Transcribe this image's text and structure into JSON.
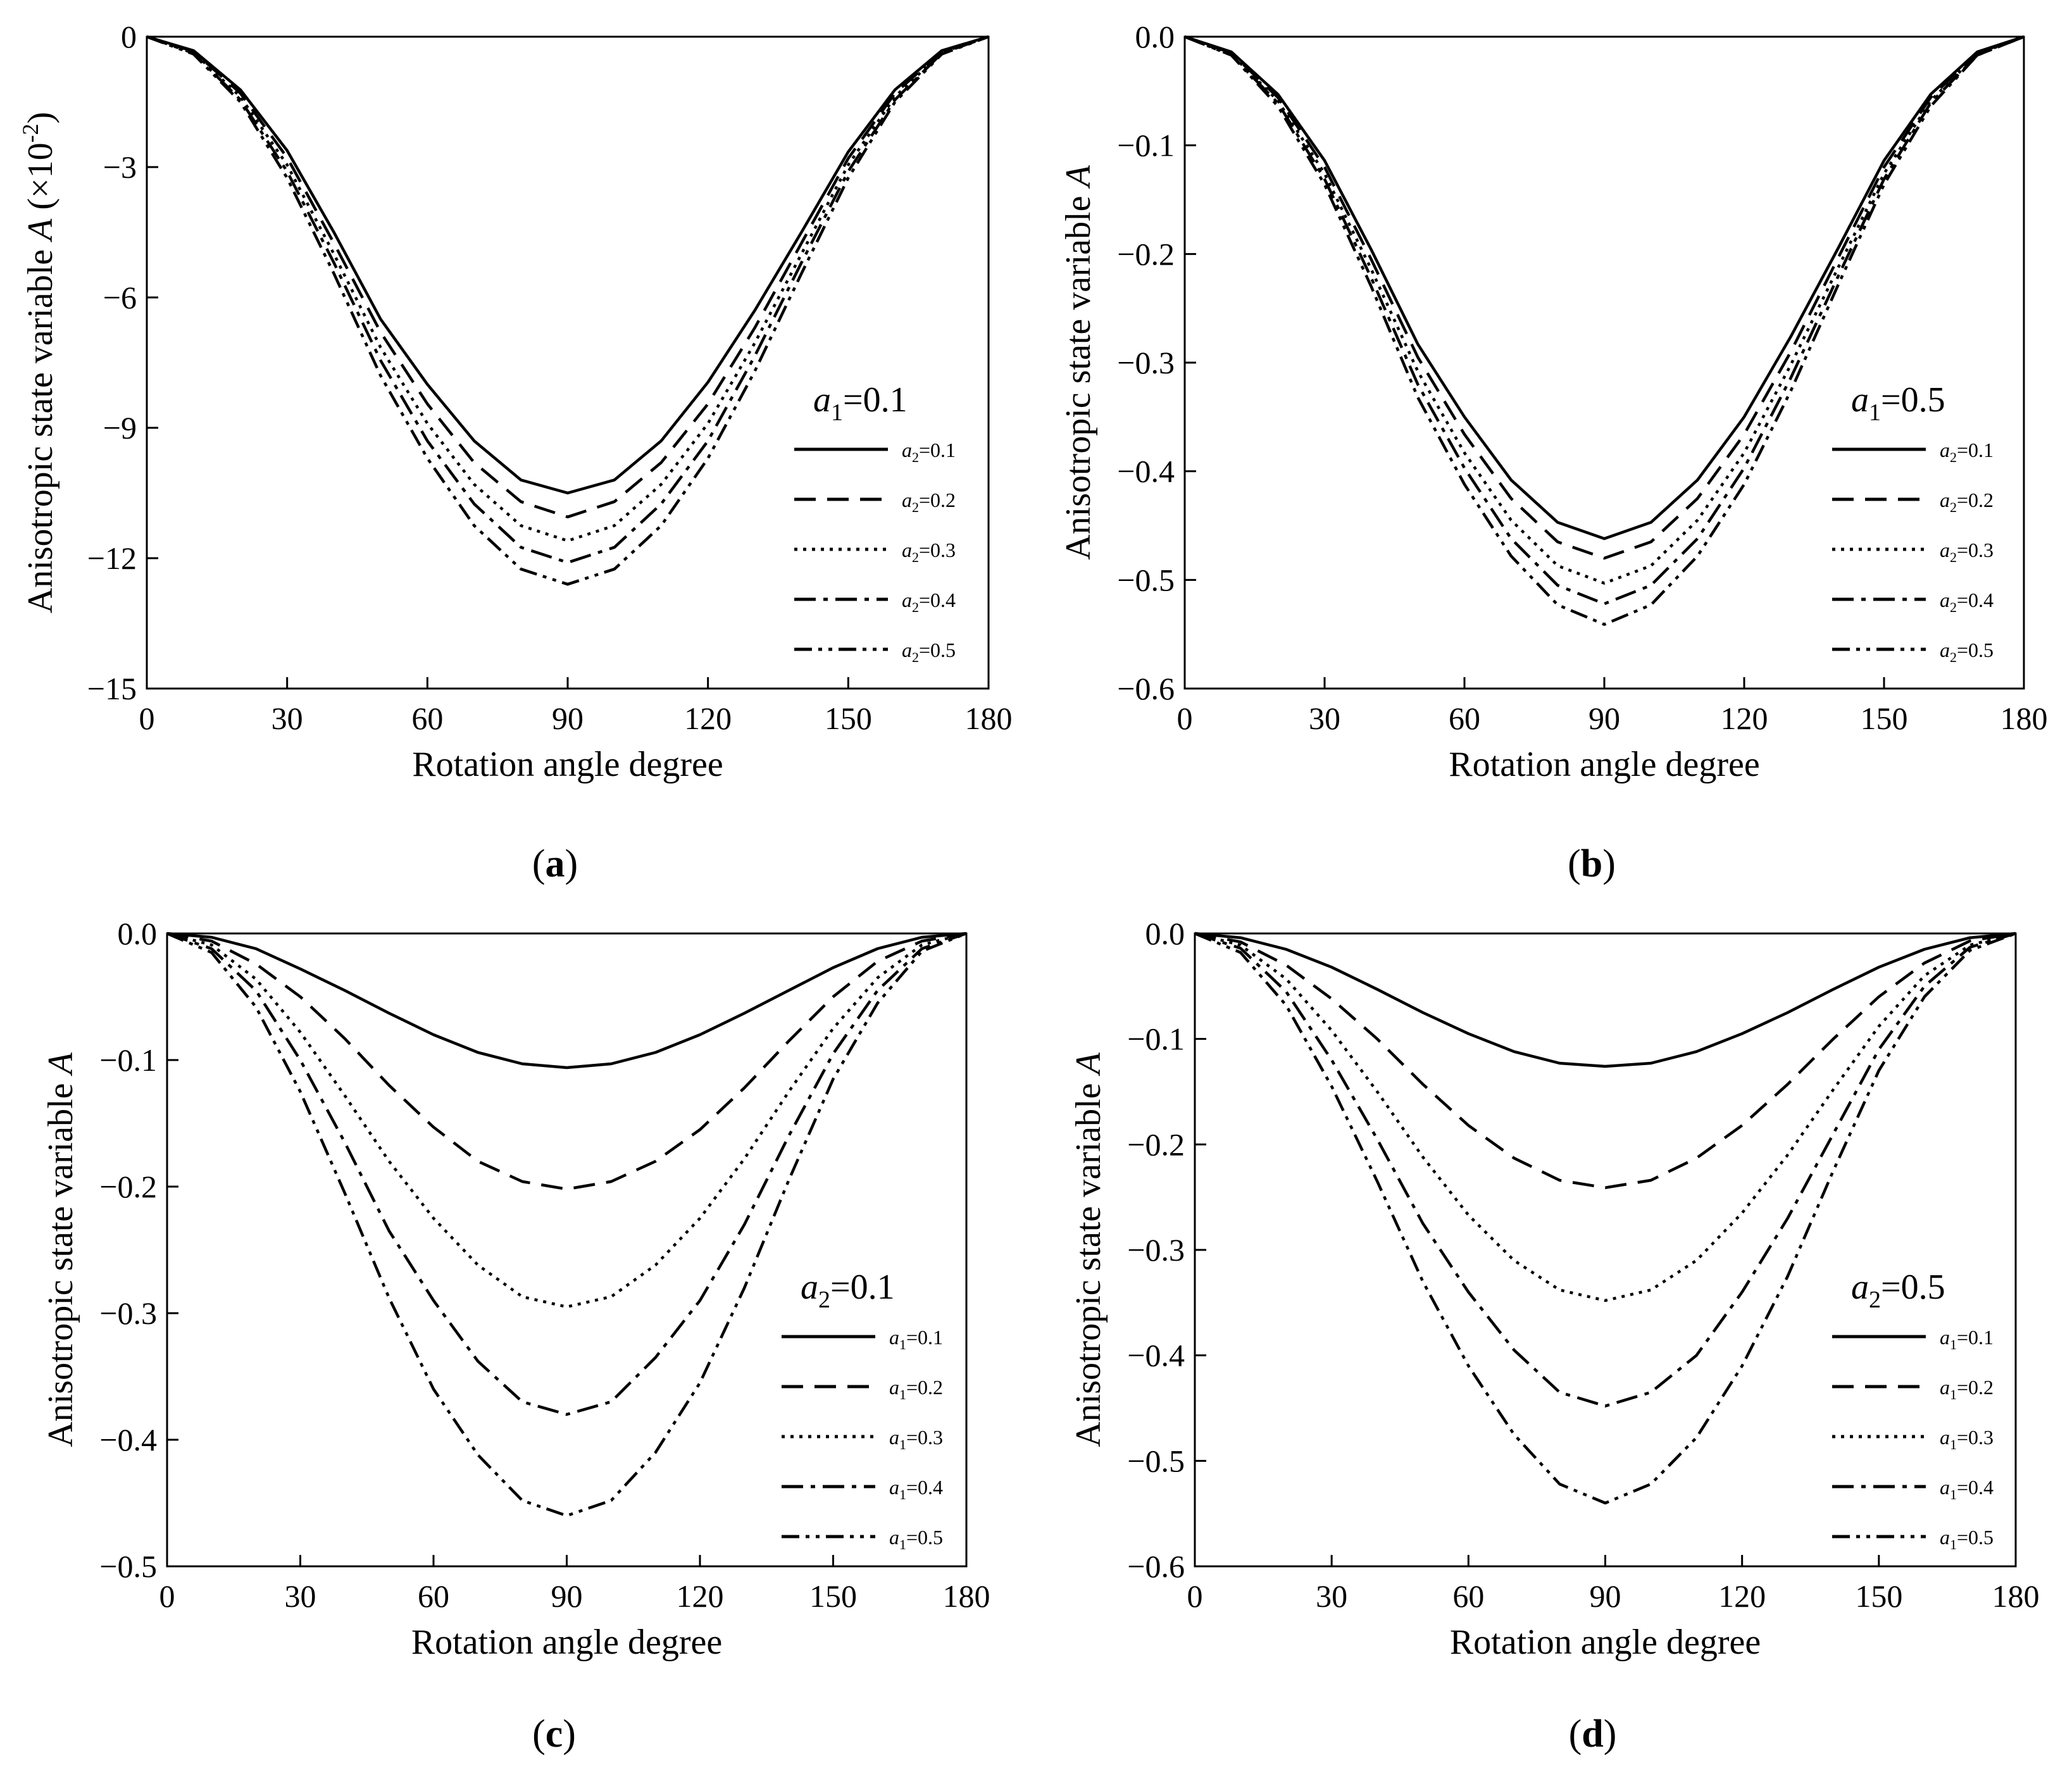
{
  "chart_data": [
    {
      "id": "a",
      "type": "line",
      "panel_label": "(a)",
      "panel_label_parts": {
        "open": "(",
        "letter": "a",
        "close": ")"
      },
      "xlabel": "Rotation angle degree",
      "ylabel": "Anisotropic state variable A (×10⁻²)",
      "ylabel_parts": {
        "main": "Anisotropic state variable ",
        "sym": "A",
        "tail": " (×10",
        "sup": "-2",
        "close": ")"
      },
      "xlim": [
        0,
        180
      ],
      "ylim": [
        -15,
        0
      ],
      "xticks": [
        "0",
        "30",
        "60",
        "90",
        "120",
        "150",
        "180"
      ],
      "xtick_values": [
        0,
        30,
        60,
        90,
        120,
        150,
        180
      ],
      "yticks": [
        "0",
        "−3",
        "−6",
        "−9",
        "−12",
        "−15"
      ],
      "ytick_values": [
        0,
        -3,
        -6,
        -9,
        -12,
        -15
      ],
      "legend_title": "a1=0.1",
      "legend_title_parts": {
        "sym": "a",
        "sub": "1",
        "rest": "=0.1"
      },
      "legend_position": "right",
      "x": [
        0,
        10,
        20,
        30,
        40,
        50,
        60,
        70,
        80,
        90,
        100,
        110,
        120,
        130,
        140,
        150,
        160,
        170,
        180
      ],
      "series": [
        {
          "name": "a2=0.1",
          "sym": "a",
          "sub": "2",
          "rest": "=0.1",
          "style": "solid",
          "values": [
            0,
            -0.32,
            -1.22,
            -2.62,
            -4.5,
            -6.5,
            -8.0,
            -9.3,
            -10.2,
            -10.5,
            -10.2,
            -9.3,
            -7.95,
            -6.3,
            -4.5,
            -2.65,
            -1.22,
            -0.32,
            0
          ]
        },
        {
          "name": "a2=0.2",
          "sym": "a",
          "sub": "2",
          "rest": "=0.2",
          "style": "dash",
          "values": [
            0,
            -0.34,
            -1.3,
            -2.78,
            -4.75,
            -6.8,
            -8.45,
            -9.8,
            -10.7,
            -11.05,
            -10.7,
            -9.8,
            -8.45,
            -6.7,
            -4.75,
            -2.8,
            -1.3,
            -0.34,
            0
          ]
        },
        {
          "name": "a2=0.3",
          "sym": "a",
          "sub": "2",
          "rest": "=0.3",
          "style": "dot",
          "values": [
            0,
            -0.36,
            -1.38,
            -2.95,
            -5.0,
            -7.15,
            -8.9,
            -10.3,
            -11.25,
            -11.6,
            -11.25,
            -10.3,
            -8.9,
            -7.05,
            -5.0,
            -2.95,
            -1.38,
            -0.36,
            0
          ]
        },
        {
          "name": "a2=0.4",
          "sym": "a",
          "sub": "2",
          "rest": "=0.4",
          "style": "dashdot",
          "values": [
            0,
            -0.38,
            -1.45,
            -3.1,
            -5.2,
            -7.45,
            -9.3,
            -10.75,
            -11.75,
            -12.1,
            -11.75,
            -10.75,
            -9.3,
            -7.35,
            -5.2,
            -3.1,
            -1.45,
            -0.38,
            0
          ]
        },
        {
          "name": "a2=0.5",
          "sym": "a",
          "sub": "2",
          "rest": "=0.5",
          "style": "dashdotdot",
          "values": [
            0,
            -0.4,
            -1.5,
            -3.25,
            -5.45,
            -7.8,
            -9.7,
            -11.25,
            -12.25,
            -12.6,
            -12.25,
            -11.25,
            -9.7,
            -7.7,
            -5.45,
            -3.25,
            -1.5,
            -0.4,
            0
          ]
        }
      ]
    },
    {
      "id": "b",
      "type": "line",
      "panel_label": "(b)",
      "panel_label_parts": {
        "open": "(",
        "letter": "b",
        "close": ")"
      },
      "xlabel": "Rotation angle degree",
      "ylabel": "Anisotropic state variable A",
      "ylabel_parts": {
        "main": "Anisotropic state variable ",
        "sym": "A",
        "tail": "",
        "sup": "",
        "close": ""
      },
      "xlim": [
        0,
        180
      ],
      "ylim": [
        -0.6,
        0
      ],
      "xticks": [
        "0",
        "30",
        "60",
        "90",
        "120",
        "150",
        "180"
      ],
      "xtick_values": [
        0,
        30,
        60,
        90,
        120,
        150,
        180
      ],
      "yticks": [
        "0.0",
        "−0.1",
        "−0.2",
        "−0.3",
        "−0.4",
        "−0.5",
        "−0.6"
      ],
      "ytick_values": [
        0,
        -0.1,
        -0.2,
        -0.3,
        -0.4,
        -0.5,
        -0.6
      ],
      "legend_title": "a1=0.5",
      "legend_title_parts": {
        "sym": "a",
        "sub": "1",
        "rest": "=0.5"
      },
      "legend_position": "right",
      "x": [
        0,
        10,
        20,
        30,
        40,
        50,
        60,
        70,
        80,
        90,
        100,
        110,
        120,
        130,
        140,
        150,
        160,
        170,
        180
      ],
      "series": [
        {
          "name": "a2=0.1",
          "sym": "a",
          "sub": "2",
          "rest": "=0.1",
          "style": "solid",
          "values": [
            0,
            -0.014,
            -0.053,
            -0.114,
            -0.196,
            -0.283,
            -0.35,
            -0.408,
            -0.447,
            -0.462,
            -0.447,
            -0.408,
            -0.35,
            -0.276,
            -0.196,
            -0.114,
            -0.053,
            -0.014,
            0
          ]
        },
        {
          "name": "a2=0.2",
          "sym": "a",
          "sub": "2",
          "rest": "=0.2",
          "style": "dash",
          "values": [
            0,
            -0.015,
            -0.056,
            -0.12,
            -0.205,
            -0.295,
            -0.366,
            -0.425,
            -0.465,
            -0.48,
            -0.465,
            -0.425,
            -0.366,
            -0.29,
            -0.205,
            -0.12,
            -0.056,
            -0.015,
            0
          ]
        },
        {
          "name": "a2=0.3",
          "sym": "a",
          "sub": "2",
          "rest": "=0.3",
          "style": "dot",
          "values": [
            0,
            -0.016,
            -0.059,
            -0.126,
            -0.214,
            -0.308,
            -0.383,
            -0.445,
            -0.487,
            -0.503,
            -0.487,
            -0.445,
            -0.383,
            -0.302,
            -0.214,
            -0.126,
            -0.059,
            -0.016,
            0
          ]
        },
        {
          "name": "a2=0.4",
          "sym": "a",
          "sub": "2",
          "rest": "=0.4",
          "style": "dashdot",
          "values": [
            0,
            -0.017,
            -0.061,
            -0.131,
            -0.222,
            -0.32,
            -0.397,
            -0.462,
            -0.505,
            -0.522,
            -0.505,
            -0.462,
            -0.397,
            -0.314,
            -0.222,
            -0.131,
            -0.061,
            -0.017,
            0
          ]
        },
        {
          "name": "a2=0.5",
          "sym": "a",
          "sub": "2",
          "rest": "=0.5",
          "style": "dashdotdot",
          "values": [
            0,
            -0.017,
            -0.064,
            -0.136,
            -0.23,
            -0.332,
            -0.412,
            -0.478,
            -0.523,
            -0.541,
            -0.523,
            -0.478,
            -0.412,
            -0.326,
            -0.23,
            -0.136,
            -0.064,
            -0.017,
            0
          ]
        }
      ]
    },
    {
      "id": "c",
      "type": "line",
      "panel_label": "(c)",
      "panel_label_parts": {
        "open": "(",
        "letter": "c",
        "close": ")"
      },
      "xlabel": "Rotation angle degree",
      "ylabel": "Anisotropic state variable A",
      "ylabel_parts": {
        "main": "Anisotropic state variable ",
        "sym": "A",
        "tail": "",
        "sup": "",
        "close": ""
      },
      "xlim": [
        0,
        180
      ],
      "ylim": [
        -0.5,
        0
      ],
      "xticks": [
        "0",
        "30",
        "60",
        "90",
        "120",
        "150",
        "180"
      ],
      "xtick_values": [
        0,
        30,
        60,
        90,
        120,
        150,
        180
      ],
      "yticks": [
        "0.0",
        "−0.1",
        "−0.2",
        "−0.3",
        "−0.4",
        "−0.5"
      ],
      "ytick_values": [
        0,
        -0.1,
        -0.2,
        -0.3,
        -0.4,
        -0.5
      ],
      "legend_title": "a2=0.1",
      "legend_title_parts": {
        "sym": "a",
        "sub": "2",
        "rest": "=0.1"
      },
      "legend_position": "right",
      "x": [
        0,
        10,
        20,
        30,
        40,
        50,
        60,
        70,
        80,
        90,
        100,
        110,
        120,
        130,
        140,
        150,
        160,
        170,
        180
      ],
      "series": [
        {
          "name": "a1=0.1",
          "sym": "a",
          "sub": "1",
          "rest": "=0.1",
          "style": "solid",
          "values": [
            0,
            -0.003,
            -0.012,
            -0.028,
            -0.045,
            -0.063,
            -0.08,
            -0.094,
            -0.103,
            -0.106,
            -0.103,
            -0.094,
            -0.08,
            -0.063,
            -0.045,
            -0.027,
            -0.012,
            -0.003,
            0
          ]
        },
        {
          "name": "a1=0.2",
          "sym": "a",
          "sub": "1",
          "rest": "=0.2",
          "style": "dash",
          "values": [
            0,
            -0.006,
            -0.024,
            -0.05,
            -0.083,
            -0.12,
            -0.153,
            -0.18,
            -0.196,
            -0.202,
            -0.196,
            -0.18,
            -0.155,
            -0.122,
            -0.085,
            -0.05,
            -0.022,
            -0.006,
            0
          ]
        },
        {
          "name": "a1=0.3",
          "sym": "a",
          "sub": "1",
          "rest": "=0.3",
          "style": "dot",
          "values": [
            0,
            -0.009,
            -0.036,
            -0.078,
            -0.128,
            -0.18,
            -0.225,
            -0.262,
            -0.287,
            -0.295,
            -0.287,
            -0.262,
            -0.225,
            -0.178,
            -0.125,
            -0.075,
            -0.035,
            -0.009,
            0
          ]
        },
        {
          "name": "a1=0.4",
          "sym": "a",
          "sub": "1",
          "rest": "=0.4",
          "style": "dashdot",
          "values": [
            0,
            -0.012,
            -0.045,
            -0.1,
            -0.165,
            -0.235,
            -0.29,
            -0.338,
            -0.37,
            -0.38,
            -0.37,
            -0.335,
            -0.29,
            -0.23,
            -0.16,
            -0.095,
            -0.045,
            -0.012,
            0
          ]
        },
        {
          "name": "a1=0.5",
          "sym": "a",
          "sub": "1",
          "rest": "=0.5",
          "style": "dashdotdot",
          "values": [
            0,
            -0.015,
            -0.058,
            -0.125,
            -0.205,
            -0.288,
            -0.36,
            -0.412,
            -0.448,
            -0.46,
            -0.448,
            -0.41,
            -0.355,
            -0.28,
            -0.195,
            -0.115,
            -0.055,
            -0.014,
            0
          ]
        }
      ]
    },
    {
      "id": "d",
      "type": "line",
      "panel_label": "(d)",
      "panel_label_parts": {
        "open": "(",
        "letter": "d",
        "close": ")"
      },
      "xlabel": "Rotation angle degree",
      "ylabel": "Anisotropic state variable A",
      "ylabel_parts": {
        "main": "Anisotropic state variable ",
        "sym": "A",
        "tail": "",
        "sup": "",
        "close": ""
      },
      "xlim": [
        0,
        180
      ],
      "ylim": [
        -0.6,
        0
      ],
      "xticks": [
        "0",
        "30",
        "60",
        "90",
        "120",
        "150",
        "180"
      ],
      "xtick_values": [
        0,
        30,
        60,
        90,
        120,
        150,
        180
      ],
      "yticks": [
        "0.0",
        "−0.1",
        "−0.2",
        "−0.3",
        "−0.4",
        "−0.5",
        "−0.6"
      ],
      "ytick_values": [
        0,
        -0.1,
        -0.2,
        -0.3,
        -0.4,
        -0.5,
        -0.6
      ],
      "legend_title": "a2=0.5",
      "legend_title_parts": {
        "sym": "a",
        "sub": "2",
        "rest": "=0.5"
      },
      "legend_position": "right",
      "x": [
        0,
        10,
        20,
        30,
        40,
        50,
        60,
        70,
        80,
        90,
        100,
        110,
        120,
        130,
        140,
        150,
        160,
        170,
        180
      ],
      "series": [
        {
          "name": "a1=0.1",
          "sym": "a",
          "sub": "1",
          "rest": "=0.1",
          "style": "solid",
          "values": [
            0,
            -0.004,
            -0.015,
            -0.032,
            -0.053,
            -0.075,
            -0.095,
            -0.112,
            -0.123,
            -0.126,
            -0.123,
            -0.112,
            -0.095,
            -0.075,
            -0.053,
            -0.032,
            -0.015,
            -0.004,
            0
          ]
        },
        {
          "name": "a1=0.2",
          "sym": "a",
          "sub": "1",
          "rest": "=0.2",
          "style": "dash",
          "values": [
            0,
            -0.008,
            -0.03,
            -0.062,
            -0.1,
            -0.143,
            -0.182,
            -0.213,
            -0.234,
            -0.241,
            -0.234,
            -0.213,
            -0.182,
            -0.143,
            -0.1,
            -0.06,
            -0.028,
            -0.007,
            0
          ]
        },
        {
          "name": "a1=0.3",
          "sym": "a",
          "sub": "1",
          "rest": "=0.3",
          "style": "dot",
          "values": [
            0,
            -0.011,
            -0.043,
            -0.092,
            -0.15,
            -0.212,
            -0.267,
            -0.31,
            -0.338,
            -0.348,
            -0.338,
            -0.31,
            -0.265,
            -0.21,
            -0.148,
            -0.088,
            -0.04,
            -0.011,
            0
          ]
        },
        {
          "name": "a1=0.4",
          "sym": "a",
          "sub": "1",
          "rest": "=0.4",
          "style": "dashdot",
          "values": [
            0,
            -0.014,
            -0.055,
            -0.12,
            -0.195,
            -0.275,
            -0.34,
            -0.395,
            -0.435,
            -0.448,
            -0.435,
            -0.4,
            -0.34,
            -0.27,
            -0.19,
            -0.11,
            -0.05,
            -0.013,
            0
          ]
        },
        {
          "name": "a1=0.5",
          "sym": "a",
          "sub": "1",
          "rest": "=0.5",
          "style": "dashdotdot",
          "values": [
            0,
            -0.018,
            -0.068,
            -0.145,
            -0.235,
            -0.33,
            -0.41,
            -0.475,
            -0.522,
            -0.54,
            -0.522,
            -0.478,
            -0.41,
            -0.325,
            -0.225,
            -0.13,
            -0.06,
            -0.016,
            0
          ]
        }
      ]
    }
  ]
}
